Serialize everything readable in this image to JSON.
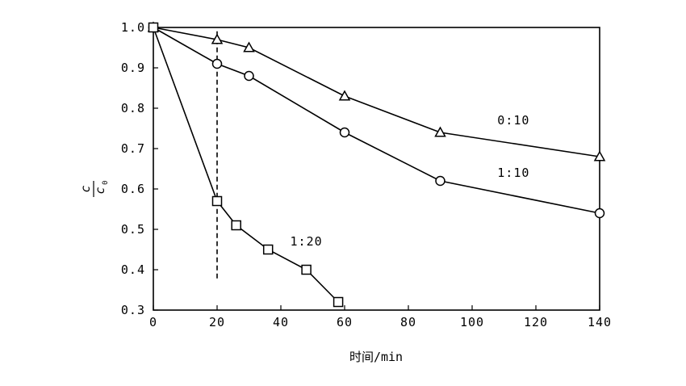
{
  "chart_data": {
    "type": "line",
    "xlabel": "时间/min",
    "ylabel": {
      "numerator": "c",
      "denominator": "c",
      "denominator_subscript": "0"
    },
    "xlim": [
      0,
      140
    ],
    "ylim": [
      0.3,
      1.0
    ],
    "xticks": [
      0,
      20,
      40,
      60,
      80,
      100,
      120,
      140
    ],
    "yticks": [
      0.3,
      0.4,
      0.5,
      0.6,
      0.7,
      0.8,
      0.9,
      1.0
    ],
    "ytick_labels": [
      "0.3",
      "0.4",
      "0.5",
      "0.6",
      "0.7",
      "0.8",
      "0.9",
      "1.0"
    ],
    "grid": false,
    "series": [
      {
        "name": "0:10",
        "marker": "triangle",
        "points": [
          [
            0,
            1.0
          ],
          [
            20,
            0.97
          ],
          [
            30,
            0.95
          ],
          [
            60,
            0.83
          ],
          [
            90,
            0.74
          ],
          [
            140,
            0.68
          ]
        ]
      },
      {
        "name": "1:10",
        "marker": "circle",
        "points": [
          [
            0,
            1.0
          ],
          [
            20,
            0.91
          ],
          [
            30,
            0.88
          ],
          [
            60,
            0.74
          ],
          [
            90,
            0.62
          ],
          [
            140,
            0.54
          ]
        ]
      },
      {
        "name": "1:20",
        "marker": "square",
        "points": [
          [
            0,
            1.0
          ],
          [
            20,
            0.57
          ],
          [
            26,
            0.51
          ],
          [
            36,
            0.45
          ],
          [
            48,
            0.4
          ],
          [
            58,
            0.32
          ]
        ]
      }
    ],
    "series_labels": {
      "s0": {
        "text": "0:10",
        "x": 113,
        "y": 0.76
      },
      "s1": {
        "text": "1:10",
        "x": 113,
        "y": 0.63
      },
      "s2": {
        "text": "1:20",
        "x": 48,
        "y": 0.46
      }
    },
    "reference_line": {
      "x": 20,
      "y_from": 0.3786,
      "y_to": 0.9982,
      "style": "dashed"
    }
  }
}
